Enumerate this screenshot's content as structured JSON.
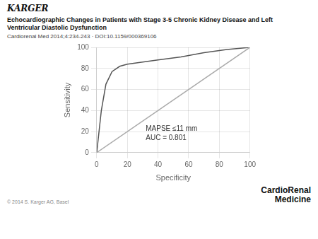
{
  "chart_data": {
    "type": "line",
    "logo": "KARGER",
    "title": [
      "Echocardiographic Changes in Patients with Stage 3-5 Chronic Kidney Disease and Left",
      "Ventricular Diastolic Dysfunction"
    ],
    "subtitle": "Cardiorenal Med 2014;4:234-243 · DOI:10.1159/000369106",
    "copyright": "© 2014 S. Karger AG, Basel",
    "journal": [
      "CardioRenal",
      "Medicine"
    ],
    "xlabel": "Specificity",
    "ylabel": "Sensitivity",
    "annotations": [
      "MAPSE ≤11 mm",
      "AUC = 0.801"
    ],
    "series": [
      {
        "x": [
          0,
          100
        ],
        "values": [
          0,
          100
        ],
        "color": "#aaaaaa"
      },
      {
        "x": [
          0,
          3,
          6,
          10,
          15,
          20,
          30,
          40,
          55,
          70,
          85,
          100
        ],
        "values": [
          0,
          40,
          65,
          77,
          82,
          84,
          86,
          88,
          91,
          95,
          98,
          100
        ],
        "color": "#555555"
      }
    ],
    "xlim": [
      0,
      100
    ],
    "ylim": [
      0,
      100
    ],
    "xticks": [
      0,
      20,
      40,
      60,
      80,
      100
    ],
    "yticks": [
      0,
      20,
      40,
      60,
      80,
      100
    ],
    "grid": true
  }
}
